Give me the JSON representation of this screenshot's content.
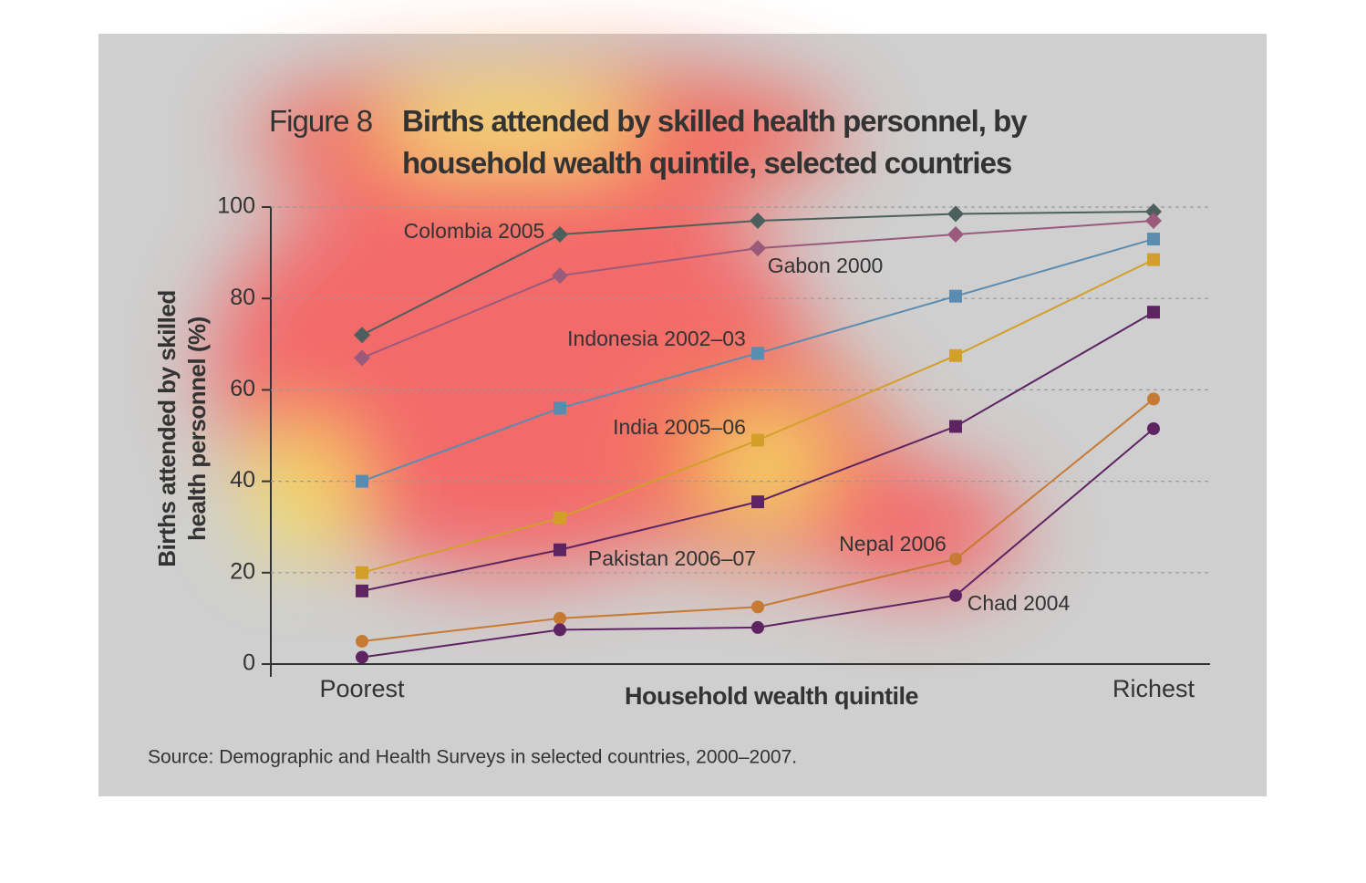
{
  "chart_data": {
    "type": "line",
    "title_label": "Figure 8",
    "title": "Births attended by skilled health personnel, by household wealth quintile, selected countries",
    "y_label": "Births attended by skilled health personnel (%)",
    "x_label": "Household wealth quintile",
    "source": "Source: Demographic and Health Surveys in selected countries, 2000–2007.",
    "categories": [
      "Poorest",
      null,
      null,
      null,
      "Richest"
    ],
    "ylim": [
      0,
      100
    ],
    "yticks": [
      0,
      20,
      40,
      60,
      80,
      100
    ],
    "grid": true,
    "series": [
      {
        "name": "Colombia 2005",
        "color": "#4d5f5c",
        "marker": "diamond",
        "values": [
          72,
          94,
          97,
          98.5,
          99
        ]
      },
      {
        "name": "Gabon 2000",
        "color": "#9a5a7c",
        "marker": "diamond",
        "values": [
          67,
          85,
          91,
          94,
          97
        ]
      },
      {
        "name": "Indonesia 2002–03",
        "color": "#5a8cb0",
        "marker": "square",
        "values": [
          40,
          56,
          68,
          80.5,
          93
        ]
      },
      {
        "name": "India 2005–06",
        "color": "#d2a028",
        "marker": "square",
        "values": [
          20,
          32,
          49,
          67.5,
          88.5
        ]
      },
      {
        "name": "Pakistan 2006–07",
        "color": "#5e2462",
        "marker": "square",
        "values": [
          16,
          25,
          35.5,
          52,
          77
        ]
      },
      {
        "name": "Nepal 2006",
        "color": "#c67a34",
        "marker": "circle",
        "values": [
          5,
          10,
          12.5,
          23,
          58
        ]
      },
      {
        "name": "Chad 2004",
        "color": "#5e2462",
        "marker": "circle",
        "values": [
          1.5,
          7.5,
          8,
          15,
          51.5
        ]
      }
    ]
  }
}
